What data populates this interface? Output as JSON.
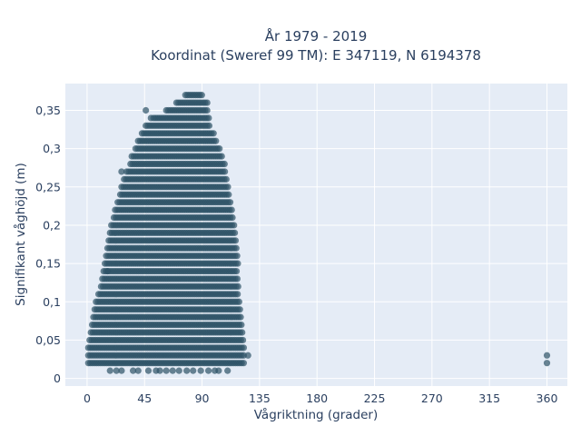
{
  "chart_data": {
    "type": "scatter",
    "title_line1": "År 1979 - 2019",
    "title_line2": "Koordinat (Sweref 99 TM): E 347119, N 6194378",
    "xlabel": "Vågriktning (grader)",
    "ylabel": "Signifikant våghöjd (m)",
    "xlim": [
      -17,
      376
    ],
    "ylim": [
      -0.01,
      0.385
    ],
    "xticks": [
      {
        "value": 0,
        "label": "0"
      },
      {
        "value": 45,
        "label": "45"
      },
      {
        "value": 90,
        "label": "90"
      },
      {
        "value": 135,
        "label": "135"
      },
      {
        "value": 180,
        "label": "180"
      },
      {
        "value": 225,
        "label": "225"
      },
      {
        "value": 270,
        "label": "270"
      },
      {
        "value": 315,
        "label": "315"
      },
      {
        "value": 360,
        "label": "360"
      }
    ],
    "yticks": [
      {
        "value": 0,
        "label": "0"
      },
      {
        "value": 0.05,
        "label": "0,05"
      },
      {
        "value": 0.1,
        "label": "0,1"
      },
      {
        "value": 0.15,
        "label": "0,15"
      },
      {
        "value": 0.2,
        "label": "0,2"
      },
      {
        "value": 0.25,
        "label": "0,25"
      },
      {
        "value": 0.3,
        "label": "0,3"
      },
      {
        "value": 0.35,
        "label": "0,35"
      }
    ],
    "grid": true,
    "marker_color": "#2e5266",
    "plot_bg": "#e5ecf6",
    "envelope": [
      {
        "y": 0.02,
        "xmin": 1,
        "xmax": 124
      },
      {
        "y": 0.03,
        "xmin": 1,
        "xmax": 124
      },
      {
        "y": 0.04,
        "xmin": 1,
        "xmax": 123
      },
      {
        "y": 0.05,
        "xmin": 2,
        "xmax": 122
      },
      {
        "y": 0.06,
        "xmin": 3,
        "xmax": 122
      },
      {
        "y": 0.07,
        "xmin": 4,
        "xmax": 121
      },
      {
        "y": 0.08,
        "xmin": 5,
        "xmax": 121
      },
      {
        "y": 0.09,
        "xmin": 6,
        "xmax": 120
      },
      {
        "y": 0.1,
        "xmin": 7,
        "xmax": 120
      },
      {
        "y": 0.11,
        "xmin": 9,
        "xmax": 119
      },
      {
        "y": 0.12,
        "xmin": 11,
        "xmax": 119
      },
      {
        "y": 0.13,
        "xmin": 12,
        "xmax": 119
      },
      {
        "y": 0.14,
        "xmin": 13,
        "xmax": 118
      },
      {
        "y": 0.15,
        "xmin": 14,
        "xmax": 118
      },
      {
        "y": 0.16,
        "xmin": 15,
        "xmax": 118
      },
      {
        "y": 0.17,
        "xmin": 16,
        "xmax": 117
      },
      {
        "y": 0.18,
        "xmin": 17,
        "xmax": 117
      },
      {
        "y": 0.19,
        "xmin": 18,
        "xmax": 116
      },
      {
        "y": 0.2,
        "xmin": 19,
        "xmax": 116
      },
      {
        "y": 0.21,
        "xmin": 21,
        "xmax": 115
      },
      {
        "y": 0.22,
        "xmin": 22,
        "xmax": 114
      },
      {
        "y": 0.23,
        "xmin": 24,
        "xmax": 113
      },
      {
        "y": 0.24,
        "xmin": 26,
        "xmax": 112
      },
      {
        "y": 0.25,
        "xmin": 27,
        "xmax": 111
      },
      {
        "y": 0.26,
        "xmin": 29,
        "xmax": 110
      },
      {
        "y": 0.27,
        "xmin": 31,
        "xmax": 109
      },
      {
        "y": 0.28,
        "xmin": 34,
        "xmax": 108
      },
      {
        "y": 0.29,
        "xmin": 35,
        "xmax": 106
      },
      {
        "y": 0.3,
        "xmin": 38,
        "xmax": 104
      },
      {
        "y": 0.31,
        "xmin": 40,
        "xmax": 101
      },
      {
        "y": 0.32,
        "xmin": 43,
        "xmax": 99
      },
      {
        "y": 0.33,
        "xmin": 46,
        "xmax": 97
      },
      {
        "y": 0.34,
        "xmin": 52,
        "xmax": 96
      },
      {
        "y": 0.35,
        "xmin": 62,
        "xmax": 95
      },
      {
        "y": 0.36,
        "xmin": 70,
        "xmax": 94
      },
      {
        "y": 0.37,
        "xmin": 77,
        "xmax": 90
      }
    ],
    "outliers": [
      {
        "x": 18,
        "y": 0.01
      },
      {
        "x": 23,
        "y": 0.01
      },
      {
        "x": 27,
        "y": 0.01
      },
      {
        "x": 36,
        "y": 0.01
      },
      {
        "x": 40,
        "y": 0.01
      },
      {
        "x": 48,
        "y": 0.01
      },
      {
        "x": 54,
        "y": 0.01
      },
      {
        "x": 57,
        "y": 0.01
      },
      {
        "x": 62,
        "y": 0.01
      },
      {
        "x": 67,
        "y": 0.01
      },
      {
        "x": 72,
        "y": 0.01
      },
      {
        "x": 78,
        "y": 0.01
      },
      {
        "x": 83,
        "y": 0.01
      },
      {
        "x": 89,
        "y": 0.01
      },
      {
        "x": 95,
        "y": 0.01
      },
      {
        "x": 100,
        "y": 0.01
      },
      {
        "x": 103,
        "y": 0.01
      },
      {
        "x": 110,
        "y": 0.01
      },
      {
        "x": 126,
        "y": 0.03
      },
      {
        "x": 27,
        "y": 0.27
      },
      {
        "x": 46,
        "y": 0.35
      },
      {
        "x": 50,
        "y": 0.34
      },
      {
        "x": 16,
        "y": 0.14
      },
      {
        "x": 360,
        "y": 0.02
      },
      {
        "x": 360,
        "y": 0.03
      }
    ]
  }
}
